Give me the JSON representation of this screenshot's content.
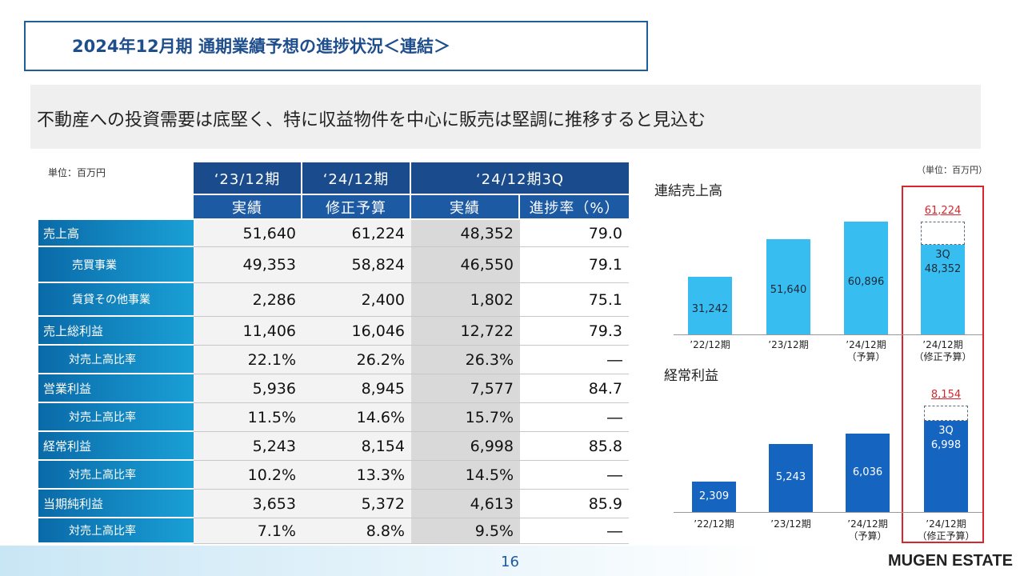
{
  "title": "2024年12月期 通期業績予想の進捗状況＜連結＞",
  "headline": "不動産への投資需要は底堅く、特に収益物件を中心に販売は堅調に推移すると見込む",
  "table": {
    "unit": "単位：百万円",
    "header_top": [
      "‘23/12期",
      "‘24/12期",
      "‘24/12期3Q"
    ],
    "header_sub": [
      "実績",
      "修正予算",
      "実績",
      "進捗率（%）"
    ],
    "rows": [
      {
        "label": "売上高",
        "values": [
          "51,640",
          "61,224",
          "48,352",
          "79.0"
        ]
      },
      {
        "label": "売買事業",
        "values": [
          "49,353",
          "58,824",
          "46,550",
          "79.1"
        ]
      },
      {
        "label": "賃貸その他事業",
        "values": [
          "2,286",
          "2,400",
          "1,802",
          "75.1"
        ]
      },
      {
        "label": "売上総利益",
        "values": [
          "11,406",
          "16,046",
          "12,722",
          "79.3"
        ]
      },
      {
        "label": "対売上高比率",
        "values": [
          "22.1%",
          "26.2%",
          "26.3%",
          "―"
        ]
      },
      {
        "label": "営業利益",
        "values": [
          "5,936",
          "8,945",
          "7,577",
          "84.7"
        ]
      },
      {
        "label": "対売上高比率",
        "values": [
          "11.5%",
          "14.6%",
          "15.7%",
          "―"
        ]
      },
      {
        "label": "経常利益",
        "values": [
          "5,243",
          "8,154",
          "6,998",
          "85.8"
        ]
      },
      {
        "label": "対売上高比率",
        "values": [
          "10.2%",
          "13.3%",
          "14.5%",
          "―"
        ]
      },
      {
        "label": "当期純利益",
        "values": [
          "3,653",
          "5,372",
          "4,613",
          "85.9"
        ]
      },
      {
        "label": "対売上高比率",
        "values": [
          "7.1%",
          "8.8%",
          "9.5%",
          "―"
        ]
      }
    ]
  },
  "chart_data": [
    {
      "type": "bar",
      "title": "連結売上高",
      "unit": "（単位：百万円）",
      "categories": [
        "’22/12期",
        "’23/12期",
        "’24/12期\n（予算）",
        "’24/12期\n（修正予算）"
      ],
      "values": [
        31242,
        51640,
        60896,
        48352
      ],
      "value_labels": [
        "31,242",
        "51,640",
        "60,896",
        "48,352"
      ],
      "last_bar_prefix": "3Q",
      "target_value": 61224,
      "target_label": "61,224",
      "ylim": [
        0,
        65000
      ],
      "bar_color": "#38bdf0"
    },
    {
      "type": "bar",
      "title": "経常利益",
      "categories": [
        "’22/12期",
        "’23/12期",
        "’24/12期\n（予算）",
        "’24/12期\n（修正予算）"
      ],
      "values": [
        2309,
        5243,
        6036,
        6998
      ],
      "value_labels": [
        "2,309",
        "5,243",
        "6,036",
        "6,998"
      ],
      "last_bar_prefix": "3Q",
      "target_value": 8154,
      "target_label": "8,154",
      "ylim": [
        0,
        8600
      ],
      "bar_color": "#1565c0"
    }
  ],
  "footer": {
    "page": "16",
    "logo": "MUGEN ESTATE"
  }
}
